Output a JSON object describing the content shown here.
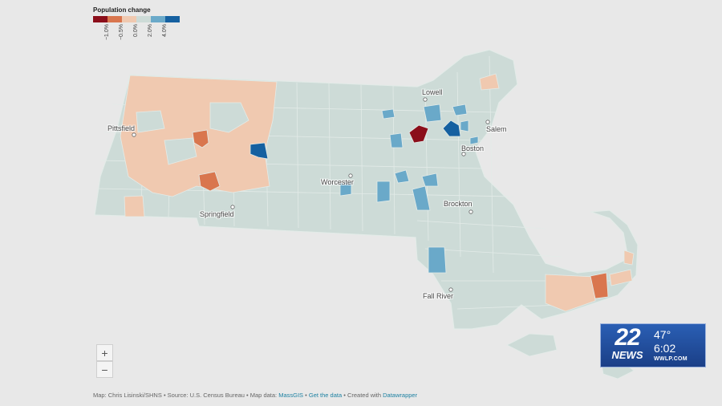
{
  "legend": {
    "title": "Population change",
    "swatches": [
      "#8b0e1a",
      "#d9764e",
      "#f0c9b0",
      "#cddbd7",
      "#6aa9c9",
      "#1560a0"
    ],
    "ticks": [
      "−1.0%",
      "−0.5%",
      "0.0%",
      "2.0%",
      "4.0%"
    ]
  },
  "colors": {
    "background": "#e8e8e8",
    "neutral": "#cddbd7",
    "neutral_border": "#e3ebe8",
    "light_decline": "#f0c9b0",
    "mid_decline": "#d9764e",
    "strong_decline": "#8b0e1a",
    "mid_growth": "#6aa9c9",
    "strong_growth": "#1560a0"
  },
  "cities": [
    "Lowell",
    "Pittsfield",
    "Salem",
    "Boston",
    "Worcester",
    "Brockton",
    "Springfield",
    "Fall River"
  ],
  "zoom": {
    "in": "+",
    "out": "−"
  },
  "footer": {
    "credit": "Map: Chris Lisinski/SHNS",
    "source": "Source: U.S. Census Bureau",
    "mapdata_prefix": "Map data:",
    "mapdata_link": "MassGIS",
    "getdata": "Get the data",
    "created_prefix": "Created with",
    "created_link": "Datawrapper",
    "sep": " • "
  },
  "news": {
    "logo_number": "22",
    "logo_word": "NEWS",
    "temperature": "47°",
    "time": "6:02",
    "website": "WWLP.COM"
  }
}
